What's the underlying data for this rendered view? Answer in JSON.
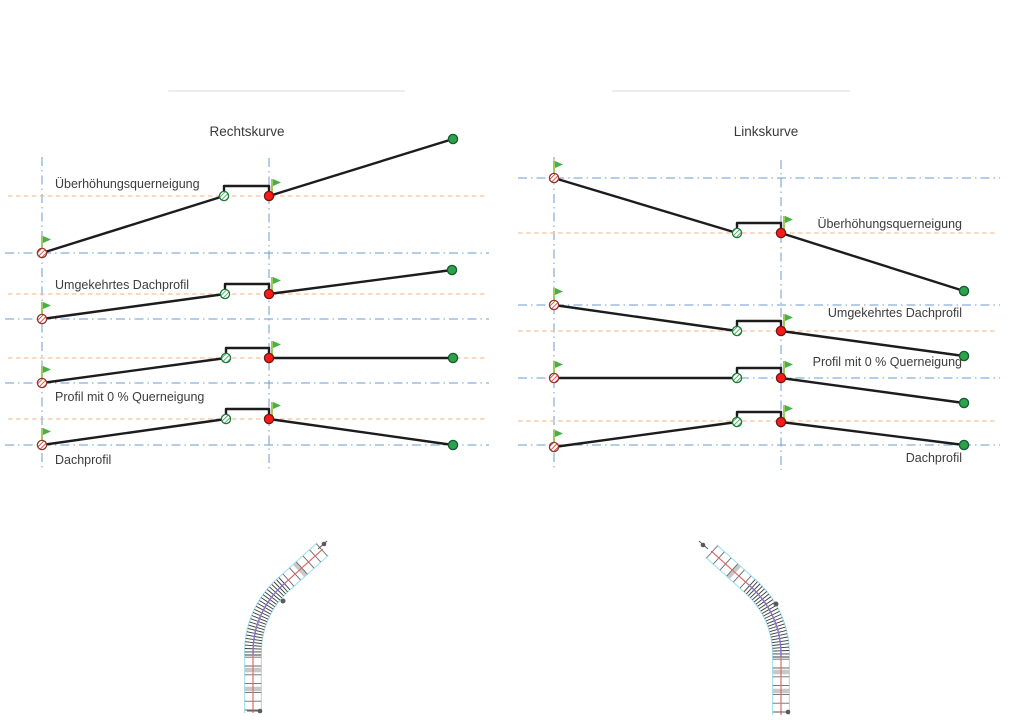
{
  "figure": {
    "background": "#FFFFFF"
  },
  "panels": {
    "rechtskurve": {
      "title": "Rechtskurve",
      "rows": [
        {
          "label": "Überhöhungsquerneigung"
        },
        {
          "label": "Umgekehrtes Dachprofil"
        },
        {
          "label": "Profil mit 0 % Querneigung"
        },
        {
          "label": "Dachprofil"
        }
      ]
    },
    "linkskurve": {
      "title": "Linkskurve",
      "rows": [
        {
          "label": "Überhöhungsquerneigung"
        },
        {
          "label": "Umgekehrtes Dachprofil"
        },
        {
          "label": "Profil mit 0 % Querneigung"
        },
        {
          "label": "Dachprofil"
        }
      ]
    }
  },
  "markers": {
    "start": "red-hatched-circle",
    "slope_end": "green-hatched-circle",
    "slope_start": "red-circle",
    "end": "green-circle",
    "station": "green-flag"
  },
  "colors": {
    "axis_line_blue": "#6C9BD2",
    "offset_line_orange": "#F4B183",
    "profile_line_black": "#1C1C1C",
    "flag_green": "#46B049",
    "marker_red": "#FB1A1A",
    "marker_green": "#2CA24C",
    "plan_edge_cyan": "#A7E3F0",
    "plan_centerline_red": "#DE6B66",
    "plan_overlay_blue": "#8079CF",
    "divider_gray": "#EDEDED"
  },
  "plan_views": {
    "left": "right-curve-alignment-plan",
    "right": "left-curve-alignment-plan"
  }
}
